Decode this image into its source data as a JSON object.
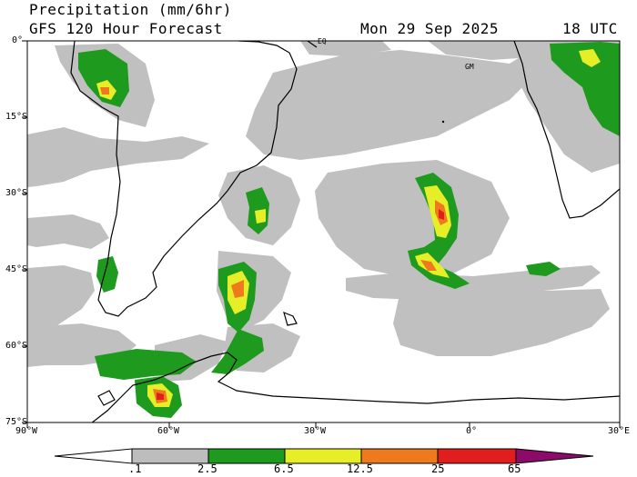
{
  "header": {
    "title": "Precipitation (mm/6hr)",
    "model": "GFS 120 Hour Forecast",
    "date": "Mon 29 Sep 2025",
    "time": "18 UTC"
  },
  "map": {
    "lat_labels": [
      "0°",
      "15°S",
      "30°S",
      "45°S",
      "60°S",
      "75°S"
    ],
    "lon_labels": [
      "90°W",
      "60°W",
      "30°W",
      "0°",
      "30°E"
    ],
    "place_labels": [
      "EQ",
      "GM"
    ],
    "colors": {
      "land_outline": "#000000",
      "light_precip": "#c0c0c0",
      "green": "#1e9a1e",
      "yellow": "#e6ee28",
      "orange": "#ef7a1e",
      "red": "#e01e1e",
      "purple": "#8b0a6a"
    }
  },
  "colorbar": {
    "labels": [
      ".1",
      "2.5",
      "6.5",
      "12.5",
      "25",
      "65"
    ],
    "colors": [
      "#ffffff",
      "#bdbdbd",
      "#1e9a1e",
      "#e6ee28",
      "#ef7a1e",
      "#e01e1e",
      "#8b0a6a"
    ]
  }
}
